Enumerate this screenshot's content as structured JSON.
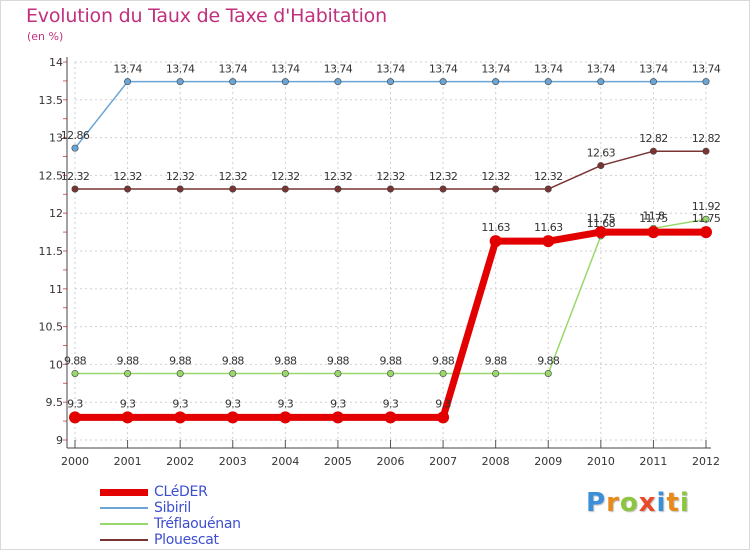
{
  "title": "Evolution du Taux de Taxe d'Habitation",
  "subtitle": "(en %)",
  "logo": {
    "text": "Proxiti",
    "colors": [
      "#3a8fd8",
      "#e88a1a",
      "#8cc63f",
      "#e84a2a",
      "#3a8fd8",
      "#e88a1a",
      "#8cc63f"
    ]
  },
  "chart_data": {
    "type": "line",
    "x": [
      "2000",
      "2001",
      "2002",
      "2003",
      "2004",
      "2005",
      "2006",
      "2007",
      "2008",
      "2009",
      "2010",
      "2011",
      "2012"
    ],
    "ylim": [
      9,
      14
    ],
    "yticks": [
      "9",
      "9.5",
      "10",
      "10.5",
      "11",
      "11.5",
      "12",
      "12.5",
      "13",
      "13.5",
      "14"
    ],
    "grid": true,
    "legend_position": "bottom-left",
    "series": [
      {
        "name": "CLéDER",
        "color": "#e30000",
        "width": 7,
        "values": [
          9.3,
          9.3,
          9.3,
          9.3,
          9.3,
          9.3,
          9.3,
          9.3,
          11.63,
          11.63,
          11.75,
          11.75,
          11.75
        ],
        "labels": [
          "9.3",
          "9.3",
          "9.3",
          "9.3",
          "9.3",
          "9.3",
          "9.3",
          "9.3",
          "11.63",
          "11.63",
          "11.75",
          "11.75",
          "11.75"
        ]
      },
      {
        "name": "Sibiril",
        "color": "#6aa5d6",
        "width": 1.5,
        "values": [
          12.86,
          13.74,
          13.74,
          13.74,
          13.74,
          13.74,
          13.74,
          13.74,
          13.74,
          13.74,
          13.74,
          13.74,
          13.74
        ],
        "labels": [
          "12.86",
          "13.74",
          "13.74",
          "13.74",
          "13.74",
          "13.74",
          "13.74",
          "13.74",
          "13.74",
          "13.74",
          "13.74",
          "13.74",
          "13.74"
        ]
      },
      {
        "name": "Tréflaouénan",
        "color": "#98d86a",
        "width": 1.5,
        "values": [
          9.88,
          9.88,
          9.88,
          9.88,
          9.88,
          9.88,
          9.88,
          9.88,
          9.88,
          9.88,
          11.7,
          11.8,
          11.92
        ],
        "labels": [
          "9.88",
          "9.88",
          "9.88",
          "9.88",
          "9.88",
          "9.88",
          "9.88",
          "9.88",
          "9.88",
          "9.88",
          "11.68",
          "11.8",
          "11.92"
        ]
      },
      {
        "name": "Plouescat",
        "color": "#7a3434",
        "width": 1.5,
        "values": [
          12.32,
          12.32,
          12.32,
          12.32,
          12.32,
          12.32,
          12.32,
          12.32,
          12.32,
          12.32,
          12.63,
          12.82,
          12.82
        ],
        "labels": [
          "12.32",
          "12.32",
          "12.32",
          "12.32",
          "12.32",
          "12.32",
          "12.32",
          "12.32",
          "12.32",
          "12.32",
          "12.63",
          "12.82",
          "12.82"
        ]
      }
    ]
  }
}
